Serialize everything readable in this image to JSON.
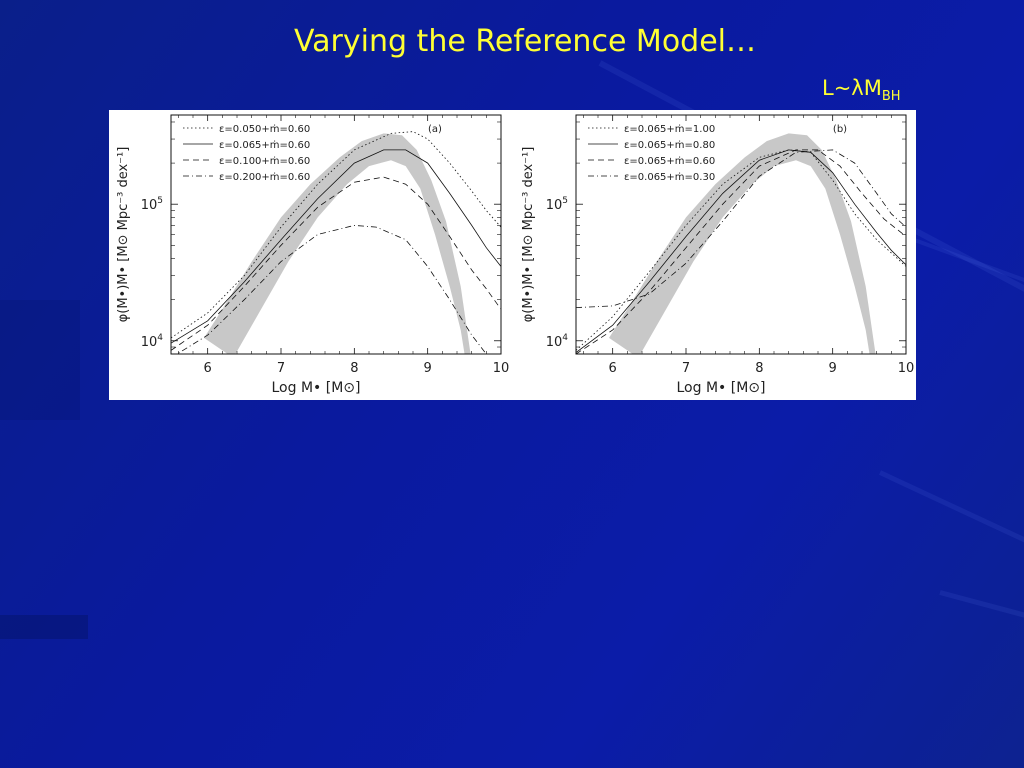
{
  "slide": {
    "title": "Varying the Reference Model…",
    "subtitle": {
      "main": "L~",
      "lambda": "λ",
      "m": "M",
      "sub": "BH"
    }
  },
  "colors": {
    "background": "#0b1ca8",
    "title": "#ffff33",
    "band": "#c8c8c8"
  },
  "chart_data": [
    {
      "type": "line",
      "panel_label": "(a)",
      "xlabel": "Log M• [M⊙]",
      "ylabel": "φ(M•)M• [M⊙ Mpc⁻³ dex⁻¹]",
      "xlim": [
        5.5,
        10
      ],
      "ylim": [
        8000,
        450000
      ],
      "yscale": "log",
      "xticks": [
        6,
        7,
        8,
        9,
        10
      ],
      "yticks": [
        {
          "value": 10000,
          "base": "10",
          "exp": "4"
        },
        {
          "value": 100000,
          "base": "10",
          "exp": "5"
        }
      ],
      "legend_position": "top-left",
      "band": {
        "upper": [
          [
            5.95,
            10500
          ],
          [
            6.2,
            17000
          ],
          [
            6.6,
            38000
          ],
          [
            7,
            80000
          ],
          [
            7.4,
            140000
          ],
          [
            7.8,
            220000
          ],
          [
            8.1,
            290000
          ],
          [
            8.4,
            330000
          ],
          [
            8.65,
            320000
          ],
          [
            8.85,
            250000
          ],
          [
            9.05,
            150000
          ],
          [
            9.25,
            75000
          ],
          [
            9.45,
            25000
          ],
          [
            9.6,
            7000
          ]
        ],
        "lower": [
          [
            6.35,
            7500
          ],
          [
            6.7,
            16000
          ],
          [
            7.1,
            38000
          ],
          [
            7.5,
            80000
          ],
          [
            7.9,
            140000
          ],
          [
            8.2,
            190000
          ],
          [
            8.5,
            210000
          ],
          [
            8.7,
            190000
          ],
          [
            8.9,
            130000
          ],
          [
            9.1,
            60000
          ],
          [
            9.3,
            25000
          ],
          [
            9.45,
            12000
          ],
          [
            9.52,
            7000
          ]
        ]
      },
      "series": [
        {
          "name": "ε=0.050+ṁ=0.60",
          "dash": "1.5,2.5",
          "points": [
            [
              5.5,
              10500
            ],
            [
              6,
              16000
            ],
            [
              6.5,
              30000
            ],
            [
              7,
              68000
            ],
            [
              7.5,
              140000
            ],
            [
              8,
              250000
            ],
            [
              8.5,
              330000
            ],
            [
              8.8,
              340000
            ],
            [
              9,
              300000
            ],
            [
              9.3,
              200000
            ],
            [
              9.6,
              125000
            ],
            [
              9.8,
              90000
            ],
            [
              10,
              68000
            ]
          ]
        },
        {
          "name": "ε=0.065+ṁ=0.60",
          "dash": "",
          "points": [
            [
              5.5,
              9600
            ],
            [
              6,
              14000
            ],
            [
              6.5,
              27000
            ],
            [
              7,
              55000
            ],
            [
              7.5,
              110000
            ],
            [
              8,
              200000
            ],
            [
              8.4,
              250000
            ],
            [
              8.7,
              250000
            ],
            [
              9,
              200000
            ],
            [
              9.3,
              120000
            ],
            [
              9.6,
              70000
            ],
            [
              9.8,
              48000
            ],
            [
              10,
              35000
            ]
          ]
        },
        {
          "name": "ε=0.100+ṁ=0.60",
          "dash": "6,4",
          "points": [
            [
              5.5,
              8500
            ],
            [
              6,
              13000
            ],
            [
              6.5,
              25000
            ],
            [
              7,
              50000
            ],
            [
              7.5,
              95000
            ],
            [
              8,
              145000
            ],
            [
              8.4,
              158000
            ],
            [
              8.7,
              140000
            ],
            [
              9,
              100000
            ],
            [
              9.3,
              58000
            ],
            [
              9.6,
              33000
            ],
            [
              9.8,
              24000
            ],
            [
              10,
              17000
            ]
          ]
        },
        {
          "name": "ε=0.200+ṁ=0.60",
          "dash": "6,3,1,3",
          "points": [
            [
              5.5,
              7500
            ],
            [
              6,
              11000
            ],
            [
              6.5,
              20000
            ],
            [
              7,
              38000
            ],
            [
              7.5,
              60000
            ],
            [
              8,
              70000
            ],
            [
              8.3,
              68000
            ],
            [
              8.7,
              55000
            ],
            [
              9,
              35000
            ],
            [
              9.3,
              20000
            ],
            [
              9.6,
              11000
            ],
            [
              9.8,
              8000
            ],
            [
              10,
              6000
            ]
          ]
        }
      ]
    },
    {
      "type": "line",
      "panel_label": "(b)",
      "xlabel": "Log M• [M⊙]",
      "ylabel": "φ(M•)M• [M⊙ Mpc⁻³ dex⁻¹]",
      "xlim": [
        5.5,
        10
      ],
      "ylim": [
        8000,
        450000
      ],
      "yscale": "log",
      "xticks": [
        6,
        7,
        8,
        9,
        10
      ],
      "yticks": [
        {
          "value": 10000,
          "base": "10",
          "exp": "4"
        },
        {
          "value": 100000,
          "base": "10",
          "exp": "5"
        }
      ],
      "legend_position": "top-left",
      "band": {
        "upper": [
          [
            5.95,
            10500
          ],
          [
            6.2,
            17000
          ],
          [
            6.6,
            38000
          ],
          [
            7,
            80000
          ],
          [
            7.4,
            140000
          ],
          [
            7.8,
            220000
          ],
          [
            8.1,
            290000
          ],
          [
            8.4,
            330000
          ],
          [
            8.65,
            320000
          ],
          [
            8.85,
            250000
          ],
          [
            9.05,
            150000
          ],
          [
            9.25,
            75000
          ],
          [
            9.45,
            25000
          ],
          [
            9.6,
            7000
          ]
        ],
        "lower": [
          [
            6.35,
            7500
          ],
          [
            6.7,
            16000
          ],
          [
            7.1,
            38000
          ],
          [
            7.5,
            80000
          ],
          [
            7.9,
            140000
          ],
          [
            8.2,
            190000
          ],
          [
            8.5,
            210000
          ],
          [
            8.7,
            190000
          ],
          [
            8.9,
            130000
          ],
          [
            9.1,
            60000
          ],
          [
            9.3,
            25000
          ],
          [
            9.45,
            12000
          ],
          [
            9.52,
            7000
          ]
        ]
      },
      "series": [
        {
          "name": "ε=0.065+ṁ=1.00",
          "dash": "1.5,2.5",
          "points": [
            [
              5.5,
              8500
            ],
            [
              6,
              15000
            ],
            [
              6.5,
              32000
            ],
            [
              7,
              70000
            ],
            [
              7.5,
              140000
            ],
            [
              8,
              220000
            ],
            [
              8.4,
              250000
            ],
            [
              8.7,
              240000
            ],
            [
              9,
              150000
            ],
            [
              9.3,
              85000
            ],
            [
              9.6,
              55000
            ],
            [
              9.8,
              44000
            ],
            [
              10,
              35000
            ]
          ]
        },
        {
          "name": "ε=0.065+ṁ=0.80",
          "dash": "",
          "points": [
            [
              5.5,
              8200
            ],
            [
              6,
              13000
            ],
            [
              6.5,
              27000
            ],
            [
              7,
              58000
            ],
            [
              7.5,
              120000
            ],
            [
              8,
              210000
            ],
            [
              8.4,
              250000
            ],
            [
              8.7,
              240000
            ],
            [
              9,
              170000
            ],
            [
              9.3,
              100000
            ],
            [
              9.6,
              62000
            ],
            [
              9.8,
              46000
            ],
            [
              10,
              36000
            ]
          ]
        },
        {
          "name": "ε=0.065+ṁ=0.60",
          "dash": "6,4",
          "points": [
            [
              5.5,
              8000
            ],
            [
              6,
              12000
            ],
            [
              6.5,
              23000
            ],
            [
              7,
              48000
            ],
            [
              7.5,
              100000
            ],
            [
              8,
              190000
            ],
            [
              8.5,
              250000
            ],
            [
              8.8,
              250000
            ],
            [
              9.1,
              190000
            ],
            [
              9.4,
              120000
            ],
            [
              9.7,
              78000
            ],
            [
              10,
              58000
            ]
          ]
        },
        {
          "name": "ε=0.065+ṁ=0.30",
          "dash": "6,3,1,3",
          "points": [
            [
              5.5,
              17500
            ],
            [
              6,
              18000
            ],
            [
              6.5,
              22000
            ],
            [
              7,
              37000
            ],
            [
              7.5,
              75000
            ],
            [
              8,
              160000
            ],
            [
              8.5,
              240000
            ],
            [
              9,
              250000
            ],
            [
              9.3,
              200000
            ],
            [
              9.6,
              120000
            ],
            [
              9.8,
              85000
            ],
            [
              10,
              68000
            ]
          ]
        }
      ]
    }
  ]
}
